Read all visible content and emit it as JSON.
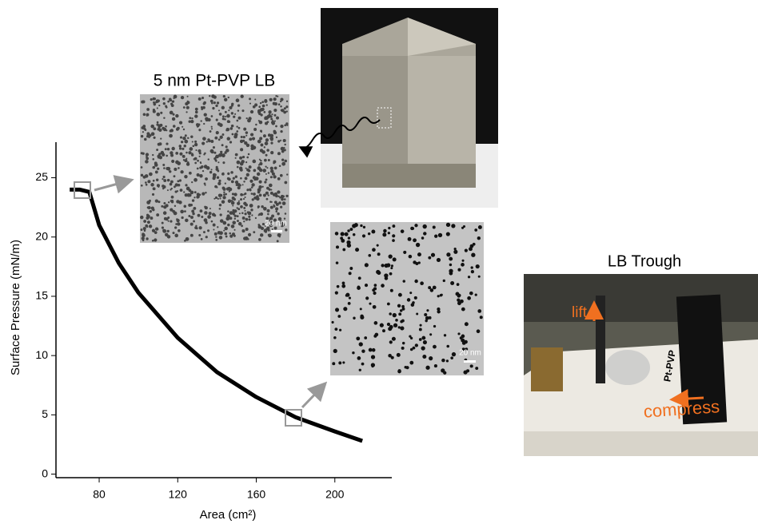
{
  "chart_data": {
    "type": "line",
    "xlabel": "Area (cm²)",
    "ylabel": "Surface Pressure (mN/m)",
    "x": [
      65,
      70,
      75,
      80,
      90,
      100,
      120,
      140,
      160,
      180,
      200,
      214
    ],
    "values": [
      24,
      24,
      23.8,
      21,
      17.8,
      15.3,
      11.5,
      8.6,
      6.5,
      4.8,
      3.6,
      2.8
    ],
    "color": "#000000",
    "xlim": [
      58,
      229
    ],
    "ylim": [
      -0.3,
      28
    ],
    "xticks": [
      80,
      120,
      160,
      200
    ],
    "yticks": [
      0,
      5,
      10,
      15,
      20,
      25
    ],
    "insets": {
      "sem_top_title": "5 nm Pt-PVP LB",
      "sem_top_scale": "20 nm",
      "sem_bottom_scale": "20 nm",
      "trough_title": "LB Trough",
      "lift": "lift",
      "compress": "compress",
      "film": "Pt-PVP"
    }
  }
}
